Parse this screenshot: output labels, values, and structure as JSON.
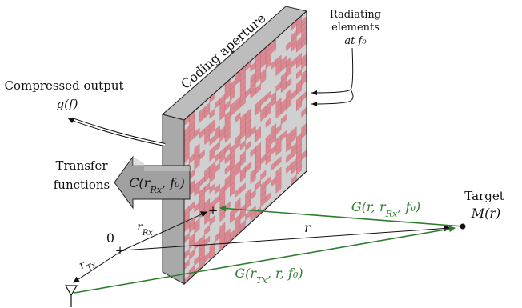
{
  "labels": {
    "radiating_line1": "Radiating",
    "radiating_line2": "elements",
    "radiating_line3": "at f₀",
    "coding_aperture": "Coding aperture",
    "compressed_output": "Compressed output",
    "g_of_f": "g(f)",
    "transfer_line1": "Transfer",
    "transfer_line2": "functions",
    "c_func": "C(r_Rx, f₀)",
    "target": "Target",
    "target_func": "M(r)",
    "g_rx": "G(r, r_Rx, f₀)",
    "g_tx": "G(r_Tx, r, f₀)",
    "r": "r",
    "r_rx": "r_Rx",
    "r_tx": "r_Tx",
    "origin": "0",
    "plus": "+"
  },
  "colors": {
    "aperture_front": "#d0d0d0",
    "aperture_pattern": "#d98a92",
    "aperture_side": "#a9a9a9",
    "aperture_top": "#bdbdbd",
    "green_path": "#2e7d2e",
    "black": "#111111"
  },
  "icons": {
    "tx_antenna": "antenna-icon",
    "target_point": "dot-icon"
  }
}
